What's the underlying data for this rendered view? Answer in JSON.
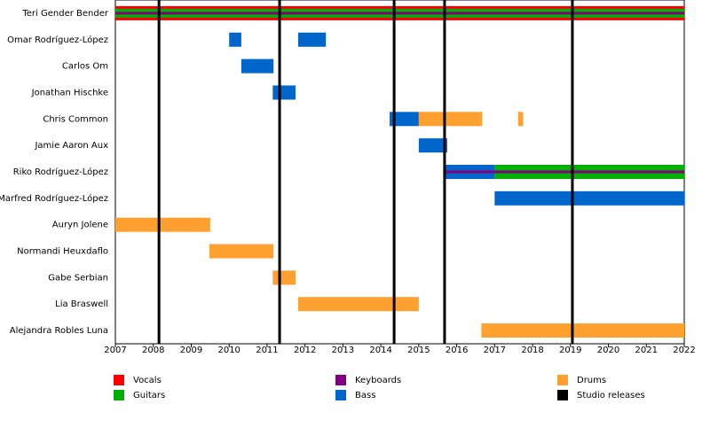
{
  "chart_data": {
    "type": "timeline",
    "xlim": [
      2007,
      2022
    ],
    "xticks": [
      2007,
      2008,
      2009,
      2010,
      2011,
      2012,
      2013,
      2014,
      2015,
      2016,
      2017,
      2018,
      2019,
      2020,
      2021,
      2022
    ],
    "legend": [
      {
        "name": "Vocals",
        "color": "#ff0000"
      },
      {
        "name": "Guitars",
        "color": "#00b000"
      },
      {
        "name": "Keyboards",
        "color": "#800080"
      },
      {
        "name": "Bass",
        "color": "#0066cc"
      },
      {
        "name": "Drums",
        "color": "#ffa030"
      },
      {
        "name": "Studio releases",
        "color": "#000000"
      }
    ],
    "members": [
      {
        "name": "Teri Gender Bender",
        "periods": [
          {
            "role": "Vocals",
            "start": 2007,
            "end": 2022
          },
          {
            "role": "Guitars",
            "start": 2007,
            "end": 2022
          },
          {
            "role": "Keyboards",
            "start": 2007,
            "end": 2022
          }
        ]
      },
      {
        "name": "Omar Rodríguez-López",
        "periods": [
          {
            "role": "Bass",
            "start": 2010.0,
            "end": 2010.32
          },
          {
            "role": "Bass",
            "start": 2011.82,
            "end": 2012.55
          }
        ]
      },
      {
        "name": "Carlos Om",
        "periods": [
          {
            "role": "Bass",
            "start": 2010.32,
            "end": 2011.17
          }
        ]
      },
      {
        "name": "Jonathan Hischke",
        "periods": [
          {
            "role": "Bass",
            "start": 2011.15,
            "end": 2011.75
          }
        ]
      },
      {
        "name": "Chris Common",
        "periods": [
          {
            "role": "Bass",
            "start": 2014.23,
            "end": 2015.0
          },
          {
            "role": "Drums",
            "start": 2015.0,
            "end": 2016.67
          },
          {
            "role": "Drums",
            "start": 2017.62,
            "end": 2017.75
          }
        ]
      },
      {
        "name": "Jamie Aaron Aux",
        "periods": [
          {
            "role": "Bass",
            "start": 2015.0,
            "end": 2015.75
          }
        ]
      },
      {
        "name": "Riko Rodríguez-López",
        "periods": [
          {
            "role": "Bass",
            "start": 2015.68,
            "end": 2017.0
          },
          {
            "role": "Guitars",
            "start": 2017.0,
            "end": 2022
          },
          {
            "role": "Keyboards",
            "start": 2015.68,
            "end": 2022
          }
        ]
      },
      {
        "name": "Marfred Rodríguez-López",
        "periods": [
          {
            "role": "Bass",
            "start": 2017.0,
            "end": 2022
          }
        ]
      },
      {
        "name": "Auryn Jolene",
        "periods": [
          {
            "role": "Drums",
            "start": 2007,
            "end": 2009.5
          }
        ]
      },
      {
        "name": "Normandi Heuxdaflo",
        "periods": [
          {
            "role": "Drums",
            "start": 2009.48,
            "end": 2011.17
          }
        ]
      },
      {
        "name": "Gabe Serbian",
        "periods": [
          {
            "role": "Drums",
            "start": 2011.15,
            "end": 2011.75
          }
        ]
      },
      {
        "name": "Lia Braswell",
        "periods": [
          {
            "role": "Drums",
            "start": 2011.82,
            "end": 2015.0
          }
        ]
      },
      {
        "name": "Alejandra Robles Luna",
        "periods": [
          {
            "role": "Drums",
            "start": 2016.65,
            "end": 2022
          }
        ]
      }
    ],
    "releases": [
      2008.15,
      2011.33,
      2014.35,
      2015.68,
      2019.05
    ]
  }
}
